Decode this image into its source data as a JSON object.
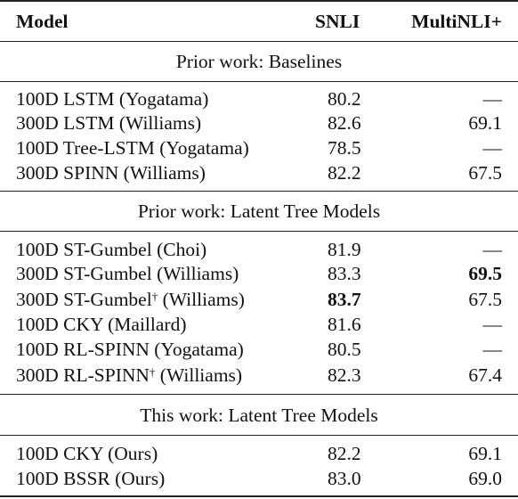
{
  "header": {
    "model": "Model",
    "snli": "SNLI",
    "multinli": "MultiNLI+"
  },
  "sections": [
    {
      "title": "Prior work: Baselines",
      "rows": [
        {
          "model": "100D LSTM (Yogatama)",
          "dagger": "",
          "snli": "80.2",
          "multinli": "—"
        },
        {
          "model": "300D LSTM (Williams)",
          "dagger": "",
          "snli": "82.6",
          "multinli": "69.1"
        },
        {
          "model": "100D Tree-LSTM (Yogatama)",
          "dagger": "",
          "snli": "78.5",
          "multinli": "—"
        },
        {
          "model": "300D SPINN (Williams)",
          "dagger": "",
          "snli": "82.2",
          "multinli": "67.5"
        }
      ]
    },
    {
      "title": "Prior work: Latent Tree Models",
      "rows": [
        {
          "model": "100D ST-Gumbel (Choi)",
          "dagger": "",
          "snli": "81.9",
          "multinli": "—"
        },
        {
          "model": "300D ST-Gumbel (Williams)",
          "dagger": "",
          "snli": "83.3",
          "multinli": "69.5"
        },
        {
          "model": "300D ST-Gumbel",
          "dagger": "†",
          "suffix": " (Williams)",
          "snli": "83.7",
          "multinli": "67.5"
        },
        {
          "model": "100D CKY (Maillard)",
          "dagger": "",
          "snli": "81.6",
          "multinli": "—"
        },
        {
          "model": "100D RL-SPINN (Yogatama)",
          "dagger": "",
          "snli": "80.5",
          "multinli": "—"
        },
        {
          "model": "300D RL-SPINN",
          "dagger": "†",
          "suffix": " (Williams)",
          "snli": "82.3",
          "multinli": "67.4"
        }
      ]
    },
    {
      "title": "This work: Latent Tree Models",
      "rows": [
        {
          "model": "100D CKY (Ours)",
          "dagger": "",
          "snli": "82.2",
          "multinli": "69.1"
        },
        {
          "model": "100D BSSR (Ours)",
          "dagger": "",
          "snli": "83.0",
          "multinli": "69.0"
        }
      ]
    }
  ]
}
